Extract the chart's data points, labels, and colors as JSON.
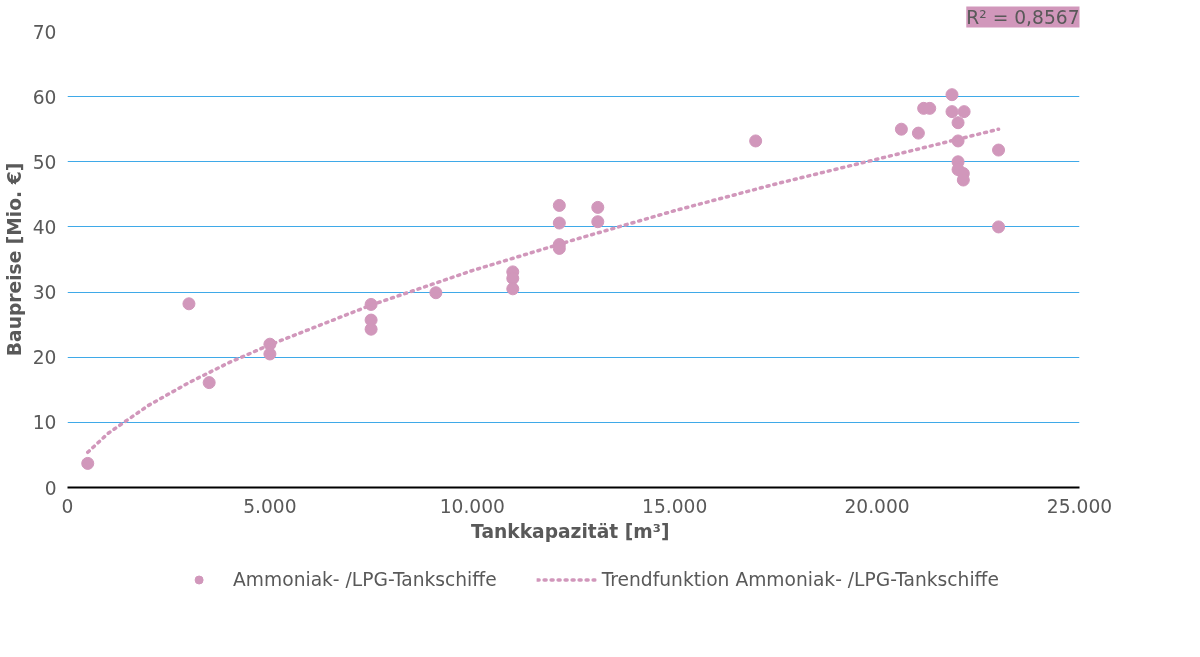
{
  "chart_data": {
    "type": "scatter",
    "xlabel": "Tankkapazität  [m³]",
    "ylabel": "Baupreise [Mio. €]",
    "annotations": [
      "R² = 0,8567"
    ],
    "xlim": [
      0,
      25000
    ],
    "ylim": [
      0,
      70
    ],
    "xticks": [
      0,
      {
        "value": 5000,
        "label": "5.000"
      },
      {
        "value": 10000,
        "label": "10.000"
      },
      {
        "value": 15000,
        "label": "15.000"
      },
      {
        "value": 20000,
        "label": "20.000"
      },
      {
        "value": 25000,
        "label": "25.000"
      }
    ],
    "yticks": [
      0,
      10,
      20,
      30,
      40,
      50,
      60,
      70
    ],
    "grid": "y",
    "legend": "bottom",
    "series": [
      {
        "name": "Ammoniak- /LPG-Tankschiffe",
        "marker": "circle",
        "color": "#d197bb",
        "x": [
          500,
          3000,
          3500,
          5000,
          5000,
          7500,
          7500,
          7500,
          9100,
          11000,
          11000,
          11000,
          12150,
          12150,
          12150,
          12150,
          13100,
          13100,
          17000,
          20600,
          21020,
          21150,
          21300,
          21850,
          21850,
          22150,
          22000,
          22000,
          22000,
          22000,
          22130,
          22130,
          23000,
          23000
        ],
        "values": [
          3.7,
          28.2,
          16.1,
          22.0,
          20.5,
          28.1,
          25.7,
          24.3,
          29.9,
          33.1,
          32.1,
          30.5,
          43.3,
          40.6,
          37.3,
          36.7,
          43.0,
          40.8,
          53.2,
          55.0,
          54.4,
          58.2,
          58.2,
          60.3,
          57.7,
          57.7,
          56.0,
          53.2,
          50.0,
          48.8,
          48.2,
          47.2,
          51.8,
          40.0
        ]
      },
      {
        "name": "Trendfunktion Ammoniak- /LPG-Tankschiffe",
        "type": "line",
        "color": "#d197bb",
        "line_style": "dotted",
        "x": [
          500,
          1000,
          2000,
          3000,
          4000,
          5000,
          7500,
          10000,
          12500,
          15000,
          17500,
          20000,
          23000
        ],
        "values": [
          5.4,
          8.3,
          12.6,
          16.1,
          19.2,
          21.9,
          28.0,
          33.3,
          38.0,
          42.5,
          46.6,
          50.4,
          55.0
        ]
      }
    ]
  }
}
